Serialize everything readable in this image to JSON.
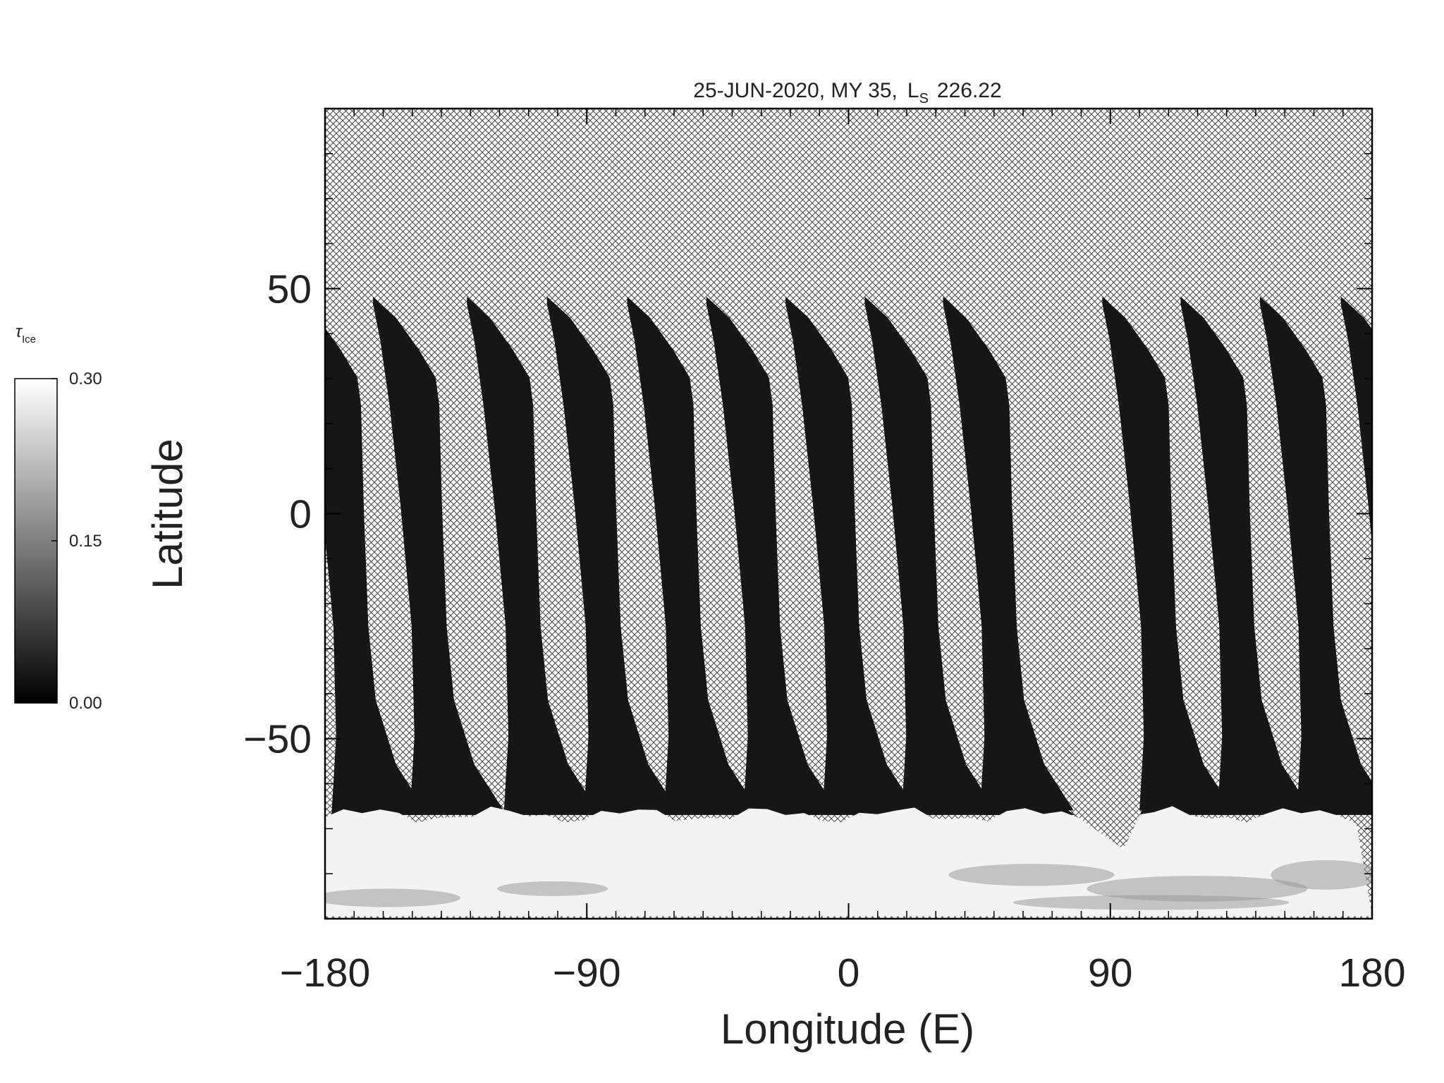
{
  "chart_data": {
    "type": "map",
    "title": {
      "text": "25-JUN-2020, MY 35,",
      "symbol": "L",
      "subscript": "S",
      "value": "226.22"
    },
    "x_label": "Longitude (E)",
    "y_label": "Latitude",
    "xlim": [
      -180,
      180
    ],
    "ylim": [
      -90,
      90
    ],
    "xticks": [
      {
        "value": -180,
        "label": "−180"
      },
      {
        "value": -90,
        "label": "−90"
      },
      0,
      90,
      180
    ],
    "yticks": [
      {
        "value": -50,
        "label": "−50"
      },
      0,
      50
    ],
    "x_minor_step": 10,
    "y_minor_step": 10,
    "colorbar": {
      "symbol": "τ",
      "subscript": "Ice",
      "range": [
        0,
        0.3
      ],
      "ticks": [
        {
          "value": 0.3,
          "label": "0.30"
        },
        {
          "value": 0.15,
          "label": "0.15"
        },
        {
          "value": 0,
          "label": "0.00"
        }
      ]
    }
  }
}
